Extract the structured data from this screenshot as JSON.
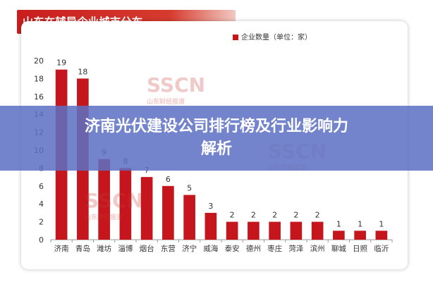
{
  "overlay": {
    "headline_line1": "济南光伏建设公司排行榜及行业影响力",
    "headline_line2": "解析"
  },
  "chart_data": {
    "type": "bar",
    "title": "山东在辅导企业城市分布",
    "legend": [
      "企业数量（单位：家）"
    ],
    "legend_position": "top-right",
    "categories": [
      "济南",
      "青岛",
      "潍坊",
      "淄博",
      "烟台",
      "东营",
      "济宁",
      "威海",
      "泰安",
      "德州",
      "枣庄",
      "菏泽",
      "滨州",
      "聊城",
      "日照",
      "临沂"
    ],
    "series": [
      {
        "name": "企业数量（单位：家）",
        "values": [
          19,
          18,
          9,
          8,
          7,
          6,
          5,
          3,
          2,
          2,
          2,
          2,
          2,
          1,
          1,
          1
        ]
      }
    ],
    "data_labels": [
      "19",
      "18",
      "9",
      "8",
      "7",
      "6",
      "5",
      "3",
      "2",
      "2",
      "2",
      "2",
      "2",
      "1",
      "1",
      "1"
    ],
    "yticks": [
      "0",
      "2",
      "4",
      "6",
      "8",
      "10",
      "12",
      "14",
      "16",
      "18",
      "20"
    ],
    "ylim": [
      0,
      20
    ],
    "bar_color": "#c4161c",
    "grid": false
  },
  "watermark": {
    "logo": "SSCN",
    "sub": "山东财经报道"
  }
}
